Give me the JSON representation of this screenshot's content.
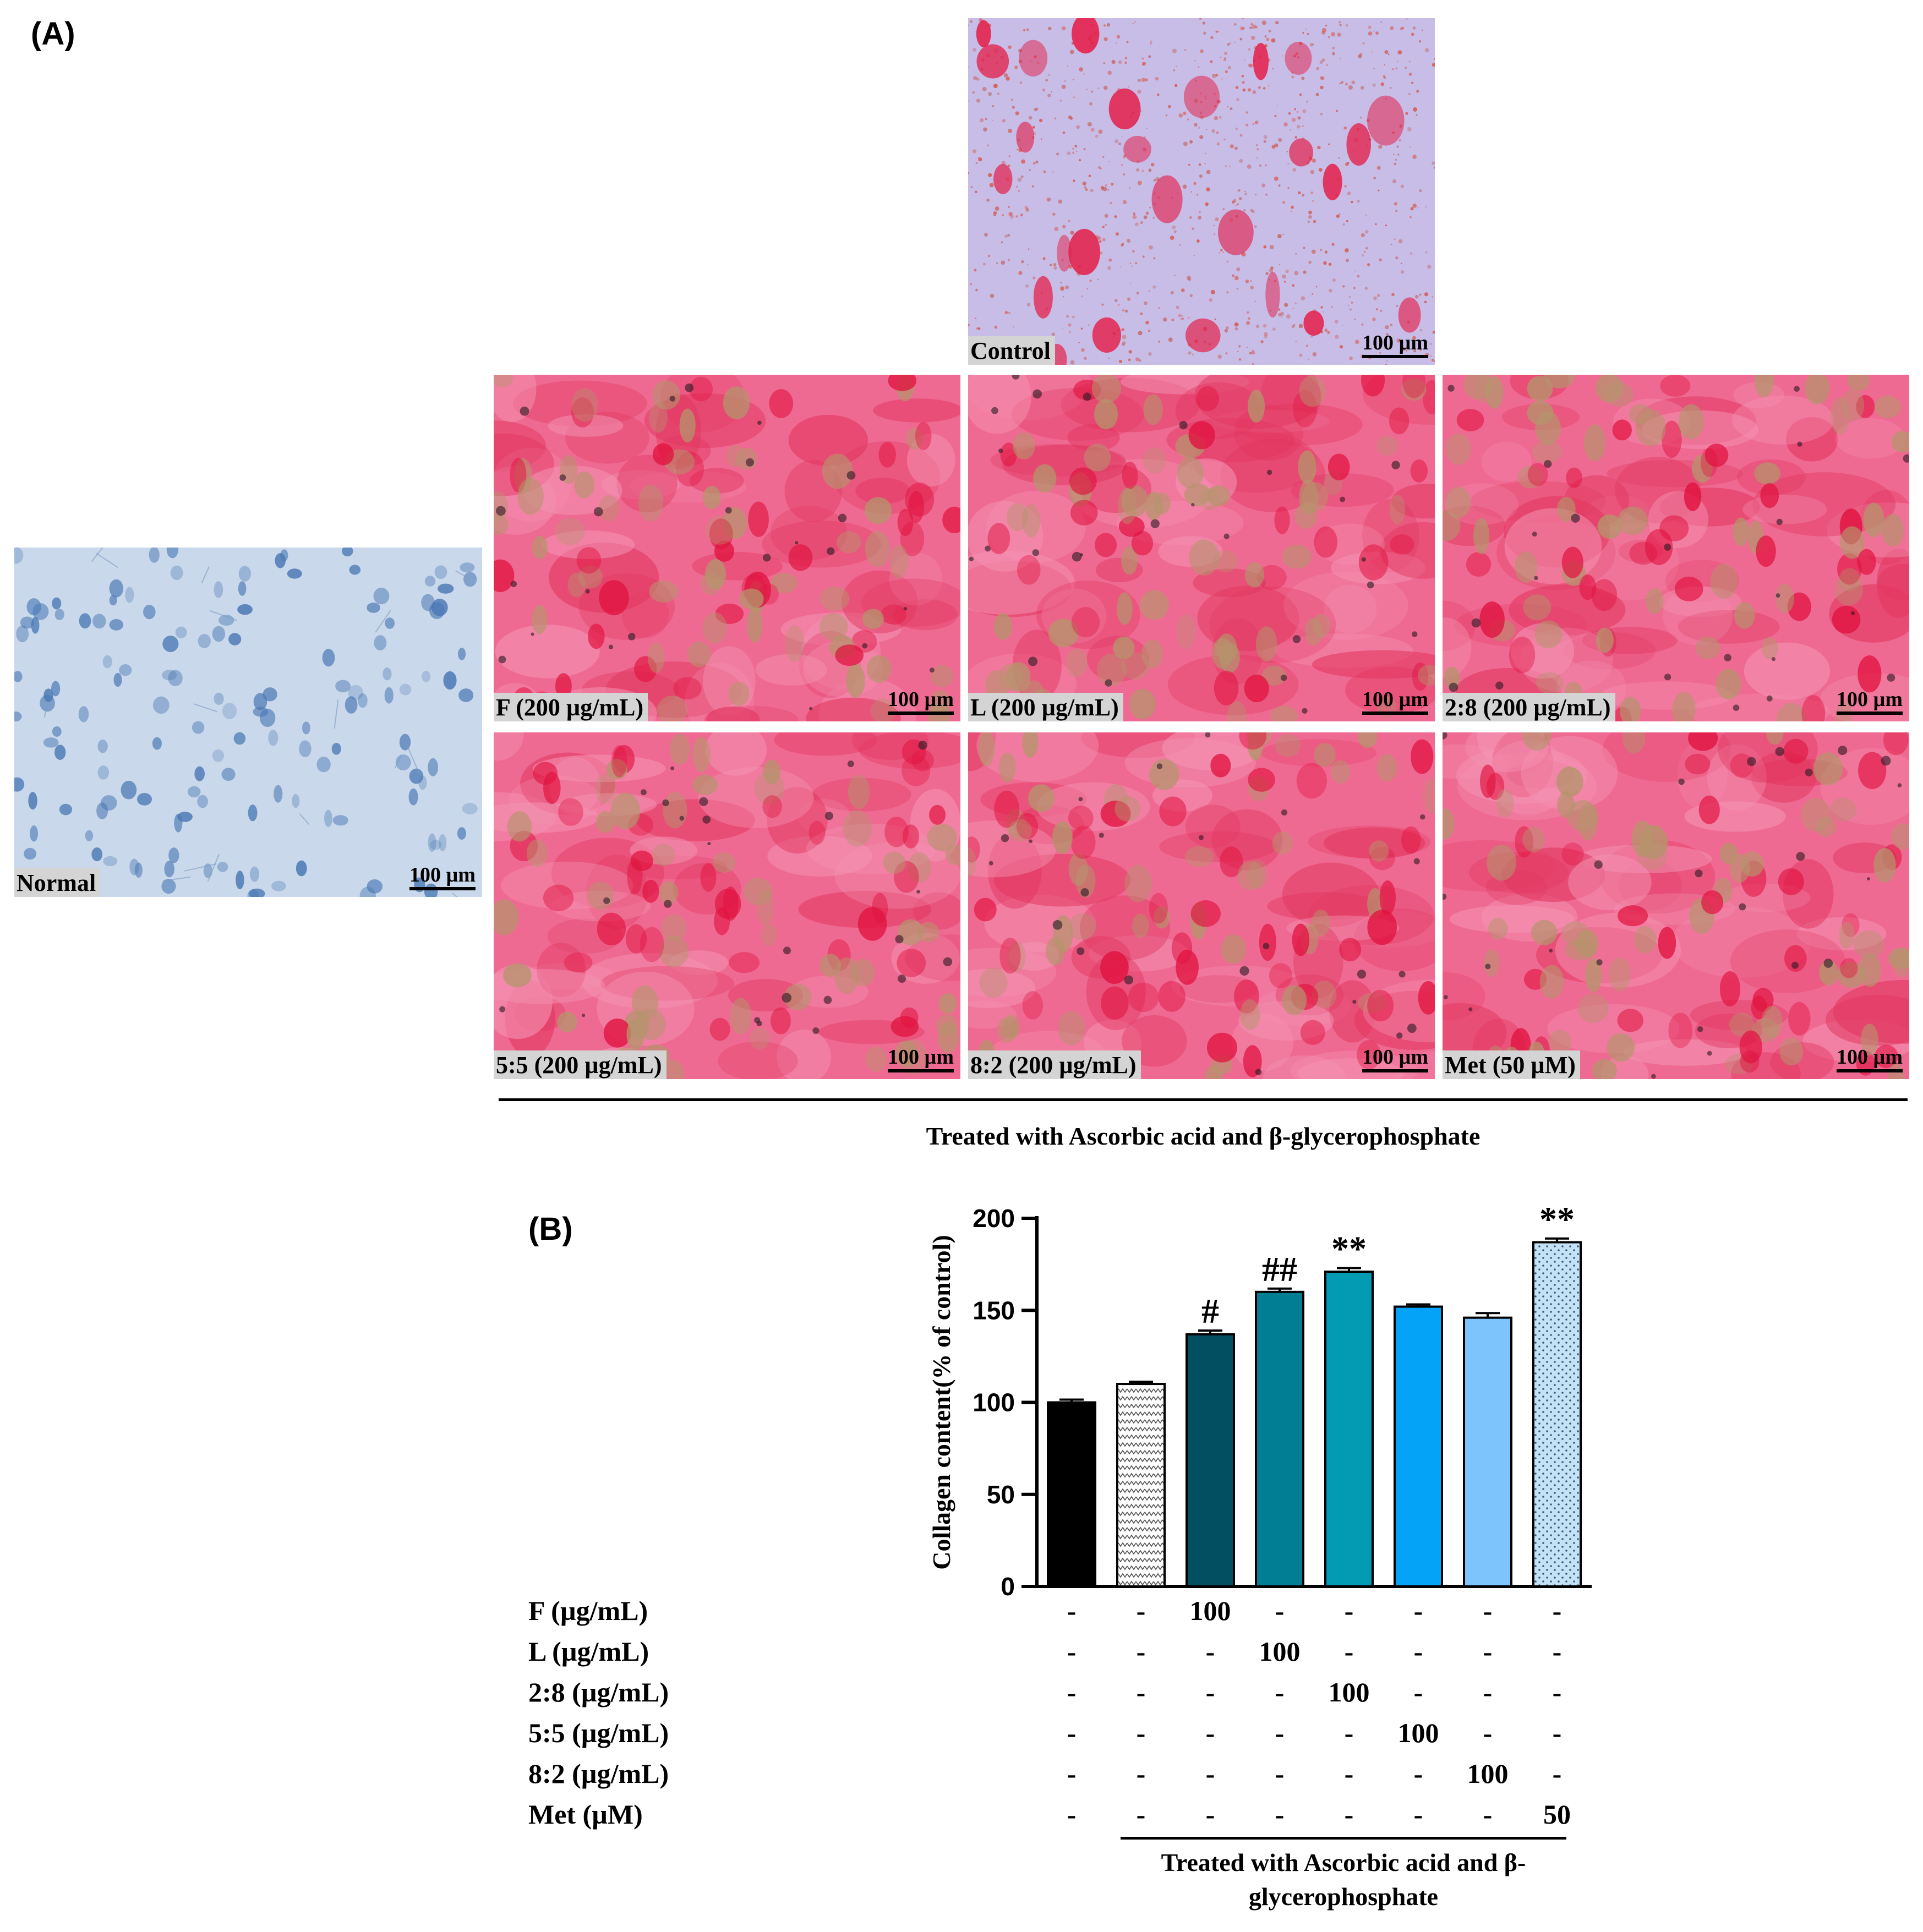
{
  "panels": {
    "a": "(A)",
    "b": "(B)"
  },
  "colors": {
    "normal_bg": "#c9d8ea",
    "normal_cell": "#4a78b4",
    "control_bg": "#c7bde6",
    "control_cell": "#e4204a",
    "stain_bg": "#ef6a92",
    "stain_cell": "#e1123f",
    "nucleus": "#b5946c"
  },
  "micrographs": [
    {
      "id": "control",
      "label": "Control",
      "scale": "100 µm",
      "style": "control"
    },
    {
      "id": "f",
      "label": "F (200 µg/mL)",
      "scale": "100 µm",
      "style": "stain"
    },
    {
      "id": "l",
      "label": "L  (200 µg/mL)",
      "scale": "100 µm",
      "style": "stain"
    },
    {
      "id": "r28",
      "label": "2:8  (200 µg/mL)",
      "scale": "100 µm",
      "style": "stain"
    },
    {
      "id": "normal",
      "label": "Normal",
      "scale": "100 µm",
      "style": "normal"
    },
    {
      "id": "r55",
      "label": "5:5  (200 µg/mL)",
      "scale": "100 µm",
      "style": "stain"
    },
    {
      "id": "r82",
      "label": "8:2 (200 µg/mL)",
      "scale": "100 µm",
      "style": "stain"
    },
    {
      "id": "met",
      "label": "Met (50 µM)",
      "scale": "100 µm",
      "style": "stain"
    }
  ],
  "caption_a": "Treated with Ascorbic acid and β-glycerophosphate",
  "caption_b_line1": "Treated with Ascorbic acid and β-",
  "caption_b_line2": "glycerophosphate",
  "chart_data": {
    "type": "bar",
    "ylabel": "Collagen content(% of control)",
    "ylim": [
      0,
      200
    ],
    "yticks": [
      "0",
      "50",
      "100",
      "150",
      "200"
    ],
    "values": [
      100,
      110,
      137,
      160,
      171,
      152,
      146,
      187
    ],
    "errors": [
      1.5,
      1.2,
      2,
      1.8,
      2,
      1.2,
      2.5,
      2
    ],
    "significance": [
      "",
      "",
      "#",
      "##",
      "**",
      "",
      "",
      "**"
    ],
    "colors": [
      "#000000",
      "#ffffff",
      "#024f62",
      "#017e93",
      "#029bb3",
      "#05a3f7",
      "#7cc4fb",
      "#c3e2f5"
    ],
    "patterns": [
      "none",
      "zigzag",
      "none",
      "none",
      "none",
      "none",
      "none",
      "dots"
    ]
  },
  "conditions": {
    "rows": [
      {
        "label": "F (µg/mL)",
        "cells": [
          "-",
          "-",
          "100",
          "-",
          "-",
          "-",
          "-",
          "-"
        ]
      },
      {
        "label": "L (µg/mL)",
        "cells": [
          "-",
          "-",
          "-",
          "100",
          "-",
          "-",
          "-",
          "-"
        ]
      },
      {
        "label": "2:8 (µg/mL)",
        "cells": [
          "-",
          "-",
          "-",
          "-",
          "100",
          "-",
          "-",
          "-"
        ]
      },
      {
        "label": "5:5 (µg/mL)",
        "cells": [
          "-",
          "-",
          "-",
          "-",
          "-",
          "100",
          "-",
          "-"
        ]
      },
      {
        "label": "8:2 (µg/mL)",
        "cells": [
          "-",
          "-",
          "-",
          "-",
          "-",
          "-",
          "100",
          "-"
        ]
      },
      {
        "label": "Met (µM)",
        "cells": [
          "-",
          "-",
          "-",
          "-",
          "-",
          "-",
          "-",
          "50"
        ]
      }
    ]
  }
}
